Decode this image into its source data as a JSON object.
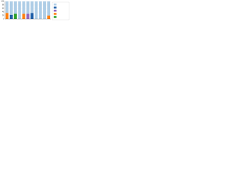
{
  "chart_data": {
    "type": "bar",
    "stacked": true,
    "categories": [
      null,
      null,
      null,
      null,
      null,
      null,
      null,
      null,
      null,
      null,
      null
    ],
    "series": [
      {
        "color": "#2ca02c",
        "values": [
          0,
          0,
          30,
          0,
          0,
          0,
          0,
          0,
          0,
          0,
          0
        ]
      },
      {
        "color": "#ff7f0e",
        "values": [
          35,
          0,
          0,
          0,
          30,
          0,
          0,
          0,
          0,
          0,
          20
        ]
      },
      {
        "color": "#9467bd",
        "values": [
          0,
          0,
          0,
          0,
          0,
          30,
          0,
          0,
          0,
          0,
          0
        ]
      },
      {
        "color": "#1f5fa8",
        "values": [
          0,
          25,
          0,
          0,
          0,
          0,
          35,
          0,
          0,
          0,
          0
        ]
      },
      {
        "color": "#aecde6",
        "values": [
          65,
          75,
          70,
          100,
          70,
          70,
          65,
          100,
          100,
          100,
          80
        ]
      }
    ],
    "ylim": [
      0,
      100
    ],
    "yticks": [
      0,
      20,
      40,
      60,
      80,
      100
    ],
    "grid": true,
    "legend": "right"
  }
}
